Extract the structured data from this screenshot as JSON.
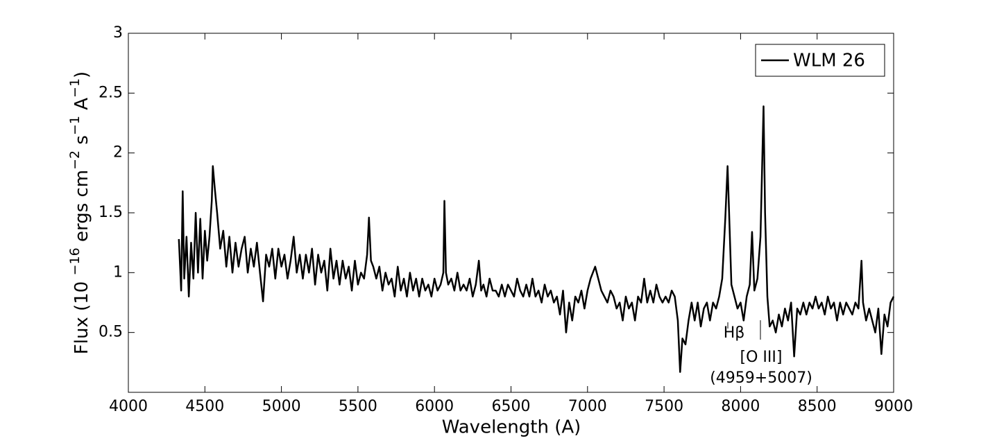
{
  "chart_data": {
    "type": "line",
    "xlabel": "Wavelength (A)",
    "ylabel_parts": [
      "Flux (10 ",
      "−16",
      " ergs cm",
      "−2",
      " s",
      "−1",
      " A",
      "−1",
      ")"
    ],
    "xlim": [
      4000,
      9000
    ],
    "xticks": [
      4000,
      4500,
      5000,
      5500,
      6000,
      6500,
      7000,
      7500,
      8000,
      8500,
      9000
    ],
    "ylim": [
      0,
      3
    ],
    "yticks": [
      0.5,
      1,
      1.5,
      2,
      2.5,
      3
    ],
    "legend": "upper right",
    "annotations": [
      "Hβ",
      "[O III]",
      "(4959+5007)"
    ],
    "x": [
      4330,
      4345,
      4355,
      4365,
      4380,
      4395,
      4410,
      4425,
      4440,
      4455,
      4470,
      4485,
      4500,
      4515,
      4530,
      4545,
      4552,
      4565,
      4580,
      4600,
      4620,
      4640,
      4660,
      4680,
      4700,
      4720,
      4740,
      4760,
      4780,
      4800,
      4820,
      4840,
      4860,
      4880,
      4900,
      4920,
      4940,
      4960,
      4980,
      5000,
      5020,
      5040,
      5060,
      5080,
      5100,
      5120,
      5140,
      5160,
      5180,
      5200,
      5220,
      5240,
      5260,
      5280,
      5300,
      5320,
      5340,
      5360,
      5380,
      5400,
      5420,
      5440,
      5460,
      5480,
      5500,
      5520,
      5540,
      5560,
      5572,
      5585,
      5600,
      5620,
      5640,
      5660,
      5680,
      5700,
      5720,
      5740,
      5760,
      5780,
      5800,
      5820,
      5840,
      5860,
      5880,
      5900,
      5920,
      5940,
      5960,
      5980,
      6000,
      6020,
      6040,
      6058,
      6065,
      6075,
      6090,
      6110,
      6130,
      6150,
      6170,
      6190,
      6210,
      6230,
      6250,
      6270,
      6290,
      6305,
      6320,
      6340,
      6360,
      6380,
      6400,
      6420,
      6440,
      6460,
      6480,
      6500,
      6520,
      6540,
      6560,
      6580,
      6600,
      6620,
      6640,
      6660,
      6680,
      6700,
      6720,
      6740,
      6760,
      6780,
      6800,
      6820,
      6840,
      6860,
      6880,
      6900,
      6920,
      6940,
      6960,
      6980,
      7000,
      7020,
      7050,
      7070,
      7090,
      7110,
      7130,
      7150,
      7170,
      7190,
      7210,
      7230,
      7250,
      7270,
      7290,
      7310,
      7330,
      7350,
      7370,
      7390,
      7410,
      7430,
      7450,
      7470,
      7490,
      7510,
      7530,
      7550,
      7570,
      7590,
      7605,
      7620,
      7640,
      7660,
      7680,
      7700,
      7720,
      7740,
      7760,
      7780,
      7800,
      7820,
      7840,
      7860,
      7880,
      7900,
      7915,
      7925,
      7940,
      7960,
      7980,
      8000,
      8020,
      8040,
      8060,
      8075,
      8090,
      8110,
      8130,
      8150,
      8160,
      8175,
      8190,
      8210,
      8230,
      8250,
      8270,
      8290,
      8310,
      8330,
      8350,
      8370,
      8390,
      8410,
      8430,
      8450,
      8470,
      8490,
      8510,
      8530,
      8550,
      8570,
      8590,
      8610,
      8630,
      8650,
      8670,
      8690,
      8710,
      8730,
      8750,
      8770,
      8790,
      8800,
      8820,
      8840,
      8860,
      8880,
      8900,
      8920,
      8940,
      8960,
      8980,
      9000
    ],
    "series": [
      {
        "name": "WLM 26",
        "color": "#000000",
        "values": [
          1.28,
          0.85,
          1.68,
          0.95,
          1.3,
          0.8,
          1.25,
          0.95,
          1.5,
          1.0,
          1.45,
          0.95,
          1.35,
          1.1,
          1.3,
          1.6,
          1.89,
          1.7,
          1.5,
          1.2,
          1.35,
          1.05,
          1.3,
          1.0,
          1.25,
          1.05,
          1.2,
          1.3,
          1.0,
          1.2,
          1.05,
          1.25,
          1.0,
          0.76,
          1.15,
          1.05,
          1.2,
          0.95,
          1.2,
          1.05,
          1.15,
          0.95,
          1.1,
          1.3,
          1.0,
          1.15,
          0.95,
          1.15,
          1.0,
          1.2,
          0.9,
          1.15,
          1.0,
          1.1,
          0.85,
          1.2,
          0.95,
          1.1,
          0.9,
          1.1,
          0.95,
          1.05,
          0.85,
          1.1,
          0.9,
          1.0,
          0.95,
          1.15,
          1.46,
          1.1,
          1.05,
          0.95,
          1.05,
          0.85,
          1.0,
          0.9,
          0.95,
          0.8,
          1.05,
          0.85,
          0.95,
          0.8,
          1.0,
          0.85,
          0.95,
          0.8,
          0.95,
          0.85,
          0.9,
          0.8,
          0.95,
          0.85,
          0.9,
          1.0,
          1.6,
          1.0,
          0.9,
          0.95,
          0.85,
          1.0,
          0.85,
          0.9,
          0.85,
          0.95,
          0.8,
          0.9,
          1.1,
          0.85,
          0.9,
          0.8,
          0.95,
          0.85,
          0.85,
          0.8,
          0.9,
          0.8,
          0.9,
          0.85,
          0.8,
          0.95,
          0.85,
          0.8,
          0.9,
          0.8,
          0.95,
          0.8,
          0.85,
          0.75,
          0.9,
          0.8,
          0.85,
          0.75,
          0.8,
          0.65,
          0.85,
          0.5,
          0.75,
          0.6,
          0.8,
          0.75,
          0.85,
          0.7,
          0.85,
          0.95,
          1.05,
          0.95,
          0.85,
          0.8,
          0.75,
          0.85,
          0.8,
          0.7,
          0.75,
          0.6,
          0.8,
          0.7,
          0.75,
          0.6,
          0.8,
          0.75,
          0.95,
          0.75,
          0.85,
          0.75,
          0.9,
          0.8,
          0.75,
          0.8,
          0.75,
          0.85,
          0.8,
          0.6,
          0.17,
          0.45,
          0.4,
          0.6,
          0.75,
          0.6,
          0.75,
          0.55,
          0.7,
          0.75,
          0.6,
          0.75,
          0.7,
          0.8,
          0.95,
          1.45,
          1.89,
          1.5,
          0.9,
          0.8,
          0.7,
          0.75,
          0.6,
          0.8,
          0.9,
          1.34,
          0.85,
          0.95,
          1.3,
          2.39,
          1.5,
          0.8,
          0.55,
          0.6,
          0.5,
          0.65,
          0.55,
          0.7,
          0.6,
          0.75,
          0.3,
          0.7,
          0.65,
          0.75,
          0.65,
          0.75,
          0.7,
          0.8,
          0.7,
          0.75,
          0.65,
          0.8,
          0.7,
          0.75,
          0.6,
          0.75,
          0.65,
          0.75,
          0.7,
          0.65,
          0.75,
          0.7,
          1.1,
          0.75,
          0.6,
          0.7,
          0.6,
          0.5,
          0.7,
          0.32,
          0.65,
          0.55,
          0.75,
          0.8
        ]
      }
    ]
  }
}
